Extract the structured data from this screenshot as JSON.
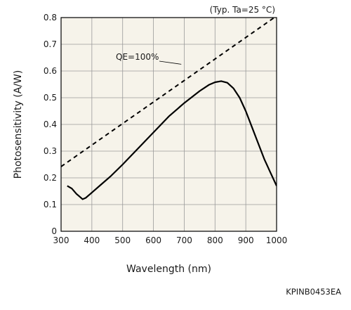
{
  "chart_data": {
    "type": "line",
    "condition": "(Typ. Ta=25 °C)",
    "xlabel": "Wavelength (nm)",
    "ylabel": "Photosensitivity (A/W)",
    "xlim": [
      300,
      1000
    ],
    "ylim": [
      0,
      0.8
    ],
    "x_ticks": [
      "300",
      "400",
      "500",
      "600",
      "700",
      "800",
      "900",
      "1000"
    ],
    "y_ticks": [
      "0",
      "0.1",
      "0.2",
      "0.3",
      "0.4",
      "0.5",
      "0.6",
      "0.7",
      "0.8"
    ],
    "grid": true,
    "series": [
      {
        "style": "solid",
        "x": [
          320,
          335,
          350,
          360,
          370,
          380,
          400,
          430,
          460,
          500,
          550,
          600,
          650,
          700,
          750,
          780,
          800,
          820,
          840,
          860,
          880,
          900,
          920,
          940,
          960,
          980,
          1000
        ],
        "y": [
          0.17,
          0.16,
          0.14,
          0.13,
          0.12,
          0.125,
          0.145,
          0.175,
          0.205,
          0.25,
          0.31,
          0.37,
          0.43,
          0.48,
          0.525,
          0.548,
          0.558,
          0.562,
          0.556,
          0.535,
          0.5,
          0.45,
          0.39,
          0.33,
          0.27,
          0.22,
          0.17
        ]
      },
      {
        "name": "QE=100%",
        "style": "dashed",
        "x": [
          300,
          1000
        ],
        "y": [
          0.242,
          0.806
        ]
      }
    ],
    "annotations": [
      {
        "text": "QE=100%",
        "x": 695,
        "y": 0.62
      }
    ]
  },
  "code": "KPINB0453EA"
}
